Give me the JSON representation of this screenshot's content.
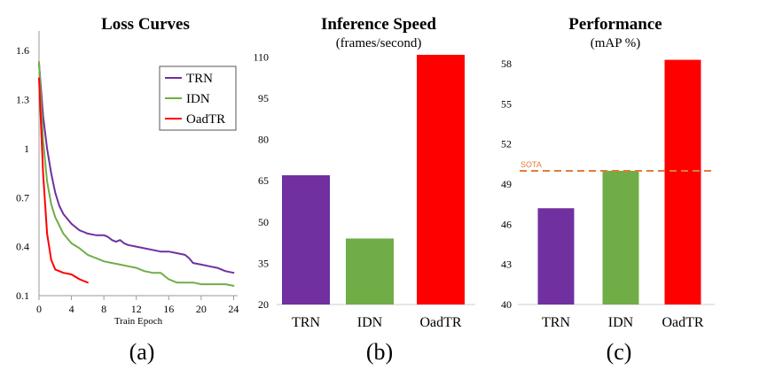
{
  "chart_data": [
    {
      "type": "line",
      "title": "Loss Curves",
      "xlabel": "Train Epoch",
      "ylabel": "",
      "xlim": [
        0,
        24.5
      ],
      "ylim": [
        0.1,
        1.72
      ],
      "xticks": [
        "0",
        "4",
        "8",
        "12",
        "16",
        "20",
        "24"
      ],
      "yticks": [
        "0.1",
        "0.4",
        "0.7",
        "1",
        "1.3",
        "1.6"
      ],
      "legend_position": "top-right",
      "panel_label": "(a)",
      "series": [
        {
          "name": "TRN",
          "color": "#7030a0",
          "x": [
            0,
            0.5,
            1,
            1.5,
            2,
            2.5,
            3,
            3.5,
            4,
            4.5,
            5,
            5.5,
            6,
            7,
            8,
            8.5,
            9,
            9.5,
            10,
            10.5,
            11,
            12,
            13,
            14,
            15,
            16,
            17,
            18,
            18.5,
            19,
            20,
            21,
            22,
            23,
            24
          ],
          "y": [
            1.52,
            1.2,
            1.0,
            0.85,
            0.73,
            0.65,
            0.6,
            0.57,
            0.54,
            0.52,
            0.5,
            0.49,
            0.48,
            0.47,
            0.47,
            0.46,
            0.44,
            0.43,
            0.44,
            0.42,
            0.41,
            0.4,
            0.39,
            0.38,
            0.37,
            0.37,
            0.36,
            0.35,
            0.33,
            0.3,
            0.29,
            0.28,
            0.27,
            0.25,
            0.24
          ]
        },
        {
          "name": "IDN",
          "color": "#70ad47",
          "x": [
            0,
            0.5,
            1,
            1.5,
            2,
            3,
            4,
            5,
            6,
            7,
            8,
            9,
            10,
            11,
            12,
            13,
            14,
            15,
            16,
            17,
            18,
            19,
            20,
            21,
            22,
            23,
            24
          ],
          "y": [
            1.53,
            1.05,
            0.8,
            0.66,
            0.58,
            0.48,
            0.42,
            0.39,
            0.35,
            0.33,
            0.31,
            0.3,
            0.29,
            0.28,
            0.27,
            0.25,
            0.24,
            0.24,
            0.2,
            0.18,
            0.18,
            0.18,
            0.17,
            0.17,
            0.17,
            0.17,
            0.16
          ]
        },
        {
          "name": "OadTR",
          "color": "#ff0000",
          "x": [
            0,
            0.5,
            1,
            1.5,
            2,
            2.5,
            3,
            4,
            5,
            6
          ],
          "y": [
            1.43,
            0.85,
            0.48,
            0.32,
            0.26,
            0.25,
            0.24,
            0.23,
            0.2,
            0.18
          ]
        }
      ]
    },
    {
      "type": "bar",
      "title": "Inference Speed",
      "subtitle": "(frames/second)",
      "categories": [
        "TRN",
        "IDN",
        "OadTR"
      ],
      "values": [
        67,
        44,
        110.8
      ],
      "colors": [
        "#7030a0",
        "#70ad47",
        "#ff0000"
      ],
      "ylim": [
        20,
        114
      ],
      "yticks": [
        "20",
        "35",
        "50",
        "65",
        "80",
        "95",
        "110"
      ],
      "panel_label": "(b)"
    },
    {
      "type": "bar",
      "title": "Performance",
      "subtitle": "(mAP %)",
      "categories": [
        "TRN",
        "IDN",
        "OadTR"
      ],
      "values": [
        47.2,
        50.0,
        58.3
      ],
      "colors": [
        "#7030a0",
        "#70ad47",
        "#ff0000"
      ],
      "ylim": [
        40,
        59
      ],
      "yticks": [
        "40",
        "43",
        "46",
        "49",
        "52",
        "55",
        "58"
      ],
      "reference_line": {
        "label": "SOTA",
        "value": 50.0,
        "color": "#e07b39"
      },
      "panel_label": "(c)"
    }
  ]
}
